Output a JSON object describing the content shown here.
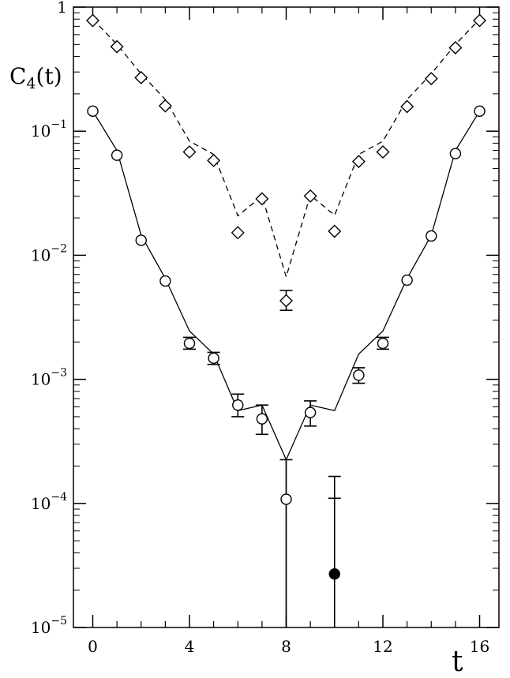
{
  "chart_data": {
    "type": "scatter",
    "title": "",
    "ylabel": "C",
    "ylabel_sub": "4",
    "ylabel_suffix": "(t)",
    "xlabel": "t",
    "x_axis": {
      "range": [
        -0.8,
        16.8
      ],
      "ticks": [
        0,
        4,
        8,
        12,
        16
      ],
      "tick_labels": [
        "0",
        "4",
        "8",
        "12",
        "16"
      ],
      "minor_ticks": [
        1,
        2,
        3,
        5,
        6,
        7,
        9,
        10,
        11,
        13,
        14,
        15
      ]
    },
    "y_axis": {
      "scale": "log",
      "range": [
        1e-05,
        1
      ],
      "tick_labels": [
        {
          "value": 1,
          "mantissa": "1",
          "exponent": ""
        },
        {
          "value": 0.1,
          "mantissa": "10",
          "exponent": "−1"
        },
        {
          "value": 0.01,
          "mantissa": "10",
          "exponent": "−2"
        },
        {
          "value": 0.001,
          "mantissa": "10",
          "exponent": "−3"
        },
        {
          "value": 0.0001,
          "mantissa": "10",
          "exponent": "−4"
        },
        {
          "value": 1e-05,
          "mantissa": "10",
          "exponent": "−5"
        }
      ]
    },
    "grid": false,
    "legend": "none",
    "series": [
      {
        "marker": "diamond",
        "line": "dashed",
        "points": [
          {
            "x": 0,
            "y": 0.78
          },
          {
            "x": 1,
            "y": 0.48
          },
          {
            "x": 2,
            "y": 0.27
          },
          {
            "x": 3,
            "y": 0.16
          },
          {
            "x": 4,
            "y": 0.068
          },
          {
            "x": 5,
            "y": 0.058
          },
          {
            "x": 6,
            "y": 0.0152
          },
          {
            "x": 7,
            "y": 0.0285
          },
          {
            "x": 8,
            "y": 0.0043,
            "ylo": 0.0036,
            "yhi": 0.0052
          },
          {
            "x": 9,
            "y": 0.03
          },
          {
            "x": 10,
            "y": 0.0156
          },
          {
            "x": 11,
            "y": 0.057
          },
          {
            "x": 12,
            "y": 0.068
          },
          {
            "x": 13,
            "y": 0.158
          },
          {
            "x": 14,
            "y": 0.265
          },
          {
            "x": 15,
            "y": 0.47
          },
          {
            "x": 16,
            "y": 0.78
          }
        ],
        "fit": [
          {
            "x": 0,
            "y": 0.8
          },
          {
            "x": 1,
            "y": 0.5
          },
          {
            "x": 2,
            "y": 0.29
          },
          {
            "x": 3,
            "y": 0.18
          },
          {
            "x": 4,
            "y": 0.083
          },
          {
            "x": 5,
            "y": 0.065
          },
          {
            "x": 6,
            "y": 0.0208
          },
          {
            "x": 7,
            "y": 0.03
          },
          {
            "x": 8,
            "y": 0.0067
          },
          {
            "x": 9,
            "y": 0.0305
          },
          {
            "x": 10,
            "y": 0.021
          },
          {
            "x": 11,
            "y": 0.065
          },
          {
            "x": 12,
            "y": 0.083
          },
          {
            "x": 13,
            "y": 0.18
          },
          {
            "x": 14,
            "y": 0.29
          },
          {
            "x": 15,
            "y": 0.5
          },
          {
            "x": 16,
            "y": 0.8
          }
        ]
      },
      {
        "marker": "circle",
        "line": "solid",
        "points": [
          {
            "x": 0,
            "y": 0.145
          },
          {
            "x": 1,
            "y": 0.064
          },
          {
            "x": 2,
            "y": 0.0132
          },
          {
            "x": 3,
            "y": 0.0062
          },
          {
            "x": 4,
            "y": 0.00195,
            "ylo": 0.00175,
            "yhi": 0.00218
          },
          {
            "x": 5,
            "y": 0.00148,
            "ylo": 0.00132,
            "yhi": 0.00165
          },
          {
            "x": 6,
            "y": 0.00062,
            "ylo": 0.0005,
            "yhi": 0.00076
          },
          {
            "x": 7,
            "y": 0.00048,
            "ylo": 0.00036,
            "yhi": 0.00062
          },
          {
            "x": 8,
            "y": 0.000108,
            "ylo": 1e-05,
            "yhi": 0.000225
          },
          {
            "x": 9,
            "y": 0.00054,
            "ylo": 0.00042,
            "yhi": 0.00067
          },
          {
            "x": 11,
            "y": 0.00108,
            "ylo": 0.00093,
            "yhi": 0.00124
          },
          {
            "x": 12,
            "y": 0.00195,
            "ylo": 0.00175,
            "yhi": 0.00218
          },
          {
            "x": 13,
            "y": 0.0063
          },
          {
            "x": 14,
            "y": 0.0143
          },
          {
            "x": 15,
            "y": 0.066
          },
          {
            "x": 16,
            "y": 0.145
          }
        ],
        "fit": [
          {
            "x": 0,
            "y": 0.145
          },
          {
            "x": 1,
            "y": 0.07
          },
          {
            "x": 2,
            "y": 0.0145
          },
          {
            "x": 3,
            "y": 0.0065
          },
          {
            "x": 4,
            "y": 0.00245
          },
          {
            "x": 5,
            "y": 0.0016
          },
          {
            "x": 6,
            "y": 0.00056
          },
          {
            "x": 7,
            "y": 0.00062
          },
          {
            "x": 8,
            "y": 0.000225
          },
          {
            "x": 9,
            "y": 0.00062
          },
          {
            "x": 10,
            "y": 0.00056
          },
          {
            "x": 11,
            "y": 0.0016
          },
          {
            "x": 12,
            "y": 0.00245
          },
          {
            "x": 13,
            "y": 0.0065
          },
          {
            "x": 14,
            "y": 0.0145
          },
          {
            "x": 15,
            "y": 0.07
          },
          {
            "x": 16,
            "y": 0.145
          }
        ],
        "fit_drop": [
          {
            "x": 8,
            "y_from": 0.000225,
            "y_to": 1e-05
          }
        ]
      },
      {
        "marker": "filled-circle",
        "line": "none",
        "points": [
          {
            "x": 10,
            "y": 2.7e-05,
            "ylo": 1e-05,
            "yhi": 0.000165,
            "ymid_tick": 0.00011
          }
        ]
      }
    ]
  }
}
